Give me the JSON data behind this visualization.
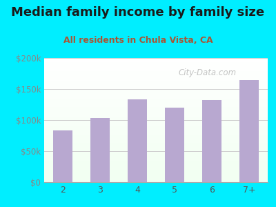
{
  "title": "Median family income by family size",
  "subtitle": "All residents in Chula Vista, CA",
  "categories": [
    "2",
    "3",
    "4",
    "5",
    "6",
    "7+"
  ],
  "values": [
    83000,
    103000,
    133000,
    120000,
    132000,
    165000
  ],
  "bar_color": "#b8a8d0",
  "background_outer": "#00eeff",
  "title_color": "#1a1a1a",
  "subtitle_color": "#aa5533",
  "ytick_color": "#888888",
  "xtick_color": "#555555",
  "grid_color": "#cccccc",
  "ylim": [
    0,
    200000
  ],
  "yticks": [
    0,
    50000,
    100000,
    150000,
    200000
  ],
  "ytick_labels": [
    "$0",
    "$50k",
    "$100k",
    "$150k",
    "$200k"
  ],
  "watermark": "City-Data.com",
  "title_fontsize": 13,
  "subtitle_fontsize": 9
}
